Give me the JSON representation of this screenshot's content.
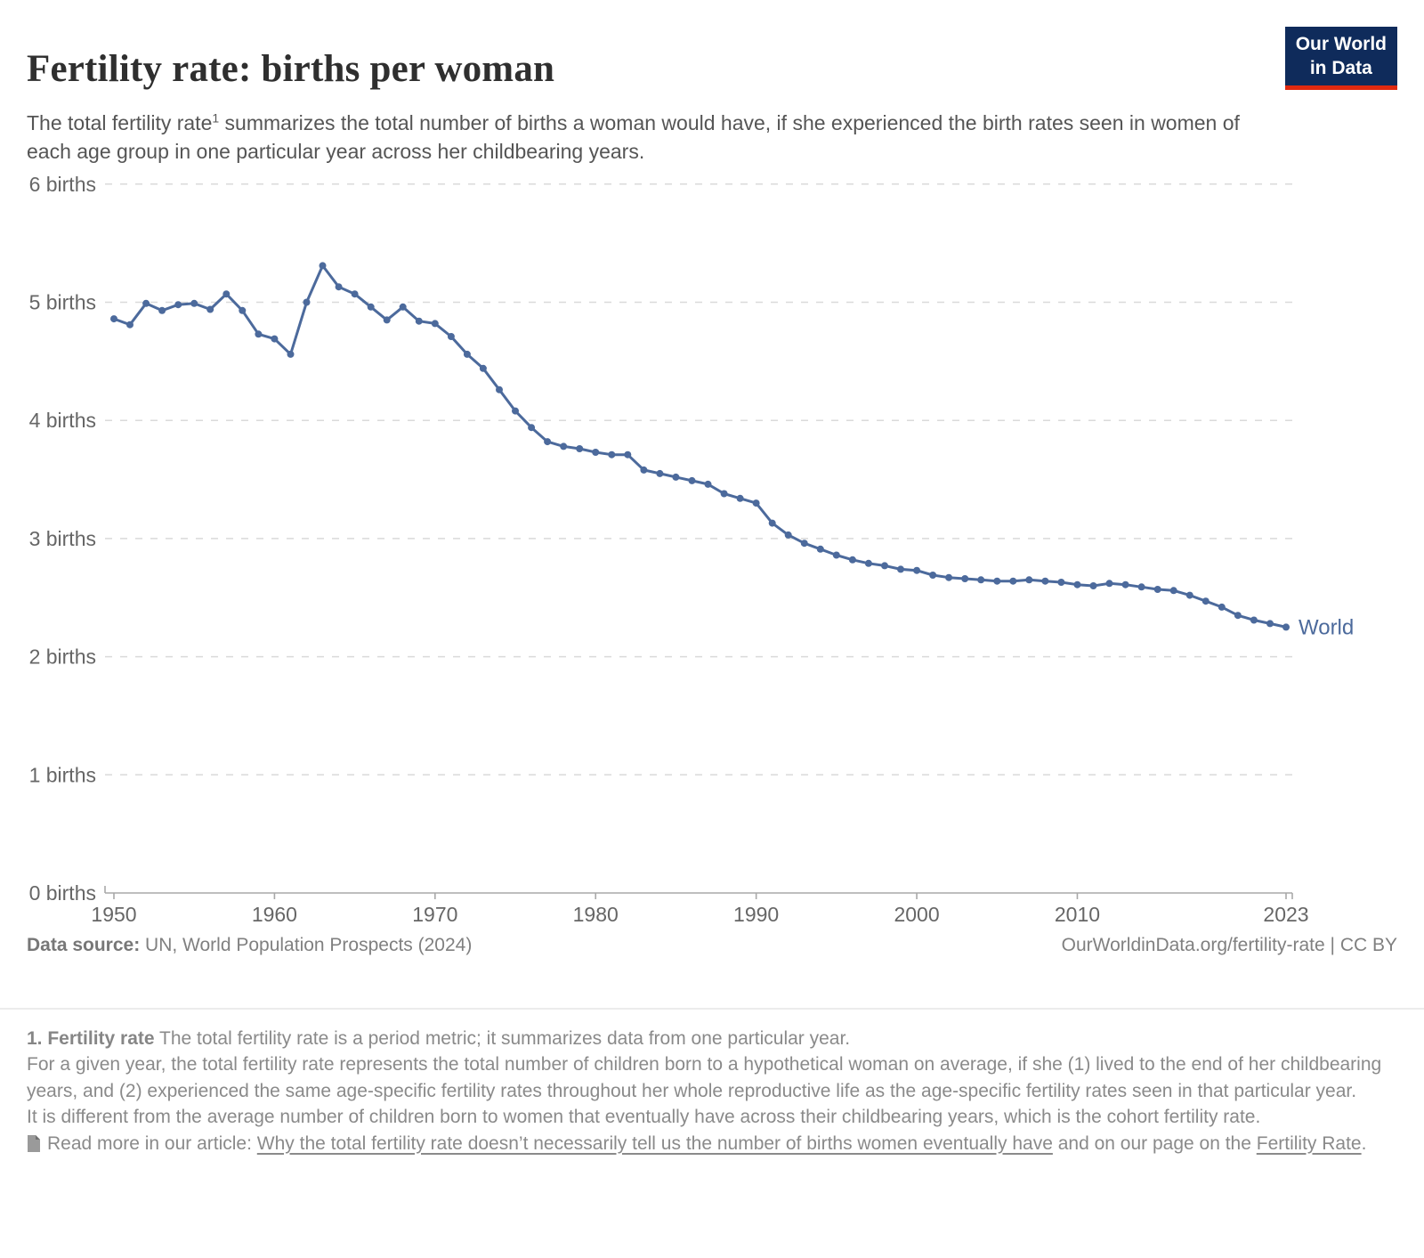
{
  "header": {
    "title": "Fertility rate: births per woman",
    "subtitle_pre": "The total fertility rate",
    "subtitle_sup": "1",
    "subtitle_post": " summarizes the total number of births a woman would have, if she experienced the birth rates seen in women of each age group in one particular year across her childbearing years.",
    "logo_line1": "Our World",
    "logo_line2": "in Data",
    "logo_bg": "#0F2B5B",
    "logo_red": "#E0290F"
  },
  "chart_data": {
    "type": "line",
    "title": "Fertility rate: births per woman",
    "xlabel": "",
    "ylabel": "births per woman",
    "ylim": [
      0,
      6
    ],
    "grid": "horizontal-dashed",
    "legend_position": "end-of-line-label",
    "axis_color": "#a8a8a8",
    "gridline_color": "#dadada",
    "tick_label_color": "#666666",
    "yticks": [
      {
        "value": 0,
        "label": "0 births"
      },
      {
        "value": 1,
        "label": "1 births"
      },
      {
        "value": 2,
        "label": "2 births"
      },
      {
        "value": 3,
        "label": "3 births"
      },
      {
        "value": 4,
        "label": "4 births"
      },
      {
        "value": 5,
        "label": "5 births"
      },
      {
        "value": 6,
        "label": "6 births"
      }
    ],
    "xticks": [
      {
        "value": 1950,
        "label": "1950"
      },
      {
        "value": 1960,
        "label": "1960"
      },
      {
        "value": 1970,
        "label": "1970"
      },
      {
        "value": 1980,
        "label": "1980"
      },
      {
        "value": 1990,
        "label": "1990"
      },
      {
        "value": 2000,
        "label": "2000"
      },
      {
        "value": 2010,
        "label": "2010"
      },
      {
        "value": 2023,
        "label": "2023"
      }
    ],
    "series": [
      {
        "name": "World",
        "color": "#4C6A9C",
        "x": [
          1950,
          1951,
          1952,
          1953,
          1954,
          1955,
          1956,
          1957,
          1958,
          1959,
          1960,
          1961,
          1962,
          1963,
          1964,
          1965,
          1966,
          1967,
          1968,
          1969,
          1970,
          1971,
          1972,
          1973,
          1974,
          1975,
          1976,
          1977,
          1978,
          1979,
          1980,
          1981,
          1982,
          1983,
          1984,
          1985,
          1986,
          1987,
          1988,
          1989,
          1990,
          1991,
          1992,
          1993,
          1994,
          1995,
          1996,
          1997,
          1998,
          1999,
          2000,
          2001,
          2002,
          2003,
          2004,
          2005,
          2006,
          2007,
          2008,
          2009,
          2010,
          2011,
          2012,
          2013,
          2014,
          2015,
          2016,
          2017,
          2018,
          2019,
          2020,
          2021,
          2022,
          2023
        ],
        "values": [
          4.86,
          4.81,
          4.99,
          4.93,
          4.98,
          4.99,
          4.94,
          5.07,
          4.93,
          4.73,
          4.69,
          4.56,
          5.0,
          5.31,
          5.13,
          5.07,
          4.96,
          4.85,
          4.96,
          4.84,
          4.82,
          4.71,
          4.56,
          4.44,
          4.26,
          4.08,
          3.94,
          3.82,
          3.78,
          3.76,
          3.73,
          3.71,
          3.71,
          3.58,
          3.55,
          3.52,
          3.49,
          3.46,
          3.38,
          3.34,
          3.3,
          3.13,
          3.03,
          2.96,
          2.91,
          2.86,
          2.82,
          2.79,
          2.77,
          2.74,
          2.73,
          2.69,
          2.67,
          2.66,
          2.65,
          2.64,
          2.64,
          2.65,
          2.64,
          2.63,
          2.61,
          2.6,
          2.62,
          2.61,
          2.59,
          2.57,
          2.56,
          2.52,
          2.47,
          2.42,
          2.35,
          2.31,
          2.28,
          2.25
        ]
      }
    ]
  },
  "footer": {
    "source_label": "Data source:",
    "source_value": " UN, World Population Prospects (2024)",
    "rights": "OurWorldinData.org/fertility-rate | CC BY"
  },
  "footnote": {
    "lead": "1. Fertility rate",
    "para1": " The total fertility rate is a period metric; it summarizes data from one particular year.",
    "para2": "For a given year, the total fertility rate represents the total number of children born to a hypothetical woman on average, if she (1) lived to the end of her childbearing years, and (2) experienced the same age-specific fertility rates throughout her whole reproductive life as the age-specific fertility rates seen in that particular year.",
    "para3": "It is different from the average number of children born to women that eventually have across their childbearing years, which is the cohort fertility rate.",
    "read_more_prefix": "Read more in our article: ",
    "link1": "Why the total fertility rate doesn’t necessarily tell us the number of births women eventually have",
    "between": " and on our page on the ",
    "link2": "Fertility Rate",
    "suffix": "."
  }
}
